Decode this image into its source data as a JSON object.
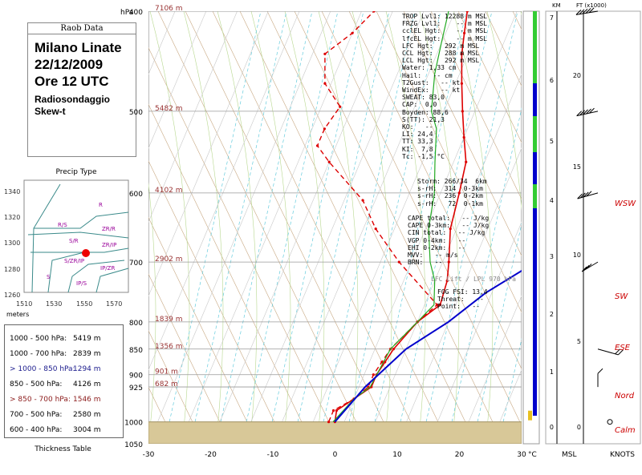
{
  "header": {
    "raob_label": "Raob Data",
    "title": "Milano Linate\n22/12/2009\nOre 12 UTC",
    "subtitle": "Radiosondaggio\nSkew-t"
  },
  "precip": {
    "title": "Precip Type",
    "y_ticks": [
      "1340",
      "1320",
      "1300",
      "1280",
      "1260"
    ],
    "x_ticks": [
      "1510",
      "1530",
      "1550",
      "1570"
    ],
    "axis_label": "meters",
    "regions": [
      "R",
      "R/S",
      "S/R",
      "ZR/R",
      "ZR/IP",
      "S/ZR/IP",
      "IP/ZR",
      "S",
      "IP/S"
    ]
  },
  "thickness": {
    "title": "Thickness Table",
    "rows": [
      {
        "label": "1000 - 500 hPa:",
        "value": "5419 m",
        "color": "#000000"
      },
      {
        "label": "1000 - 700 hPa:",
        "value": "2839 m",
        "color": "#000000"
      },
      {
        "label": "> 1000 - 850 hPa:",
        "value": "1294 m",
        "color": "#1a1a8c"
      },
      {
        "label": "850 - 500 hPa:",
        "value": "4126 m",
        "color": "#000000"
      },
      {
        "label": "> 850 - 700 hPa:",
        "value": "1546 m",
        "color": "#8b1a1a"
      },
      {
        "label": "700 - 500 hPa:",
        "value": "2580 m",
        "color": "#000000"
      },
      {
        "label": "600 - 400 hPa:",
        "value": "3004 m",
        "color": "#000000"
      }
    ]
  },
  "indices": {
    "block1": [
      "TROP Lvl1: 12288 m MSL",
      "FRZG Lvl1:    -- m MSL",
      "cclEL Hgt:    -- m MSL",
      "lfcEL Hgt:    -- m MSL",
      "LFC Hgt:   292 m MSL",
      "CCL Hgt:   288 m MSL",
      "LCL Hgt:   292 m MSL",
      "Water: 1,33 cm",
      "Hail:   -- cm",
      "T2Gust:   -- kt",
      "WindEx:   -- kt",
      "SWEAT: 83,0",
      "CAP:  0,0",
      "Boyden: 88,6",
      "S(TT): 21,3",
      "KO:   --",
      "LI: 24,4",
      "TT: 33,3",
      "KI:  7,8",
      "Tc: -1,5 °C"
    ],
    "block2": [
      "Storm: 266/34  6km",
      "s-rH:  314  0-3km",
      "s-rH:  236  0-2km",
      "s-rH:   72  0-1km"
    ],
    "block3": [
      "CAPE total:   -- J/kg",
      "CAPE 0-3km:   -- J/kg",
      "CIN total:   -- J/kg",
      "VGP 0-4km:   --",
      "EHI 0-2km:   --",
      "MVV:   -- m/s",
      "BRN:   --"
    ],
    "lfc_label": "LFC Lift / LPL 970 hPa",
    "block4": [
      "FOG FSI: 13,4",
      "Threat:   --",
      "Point:   --"
    ]
  },
  "axes": {
    "hpa_label": "hPa",
    "celsius_label": "°C",
    "msl_label": "MSL",
    "knots_label": "KNOTS",
    "km_label": "KM",
    "ft_label": "FT (x1000)",
    "pressure_ticks": [
      "400",
      "500",
      "600",
      "700",
      "800",
      "850",
      "900",
      "925",
      "1000",
      "1050"
    ],
    "temp_ticks": [
      "-30",
      "-20",
      "-10",
      "0",
      "10",
      "20",
      "30"
    ],
    "height_labels": [
      "7106 m",
      "5482 m",
      "4102 m",
      "2902 m",
      "1839 m",
      "1356 m",
      "901 m",
      "682 m"
    ],
    "km_ticks": [
      "7",
      "6",
      "5",
      "4",
      "3",
      "2",
      "1",
      "0"
    ],
    "ft_ticks": [
      "20",
      "15",
      "10",
      "5",
      "0"
    ]
  },
  "wind_labels": [
    "WSW",
    "SW",
    "ESE",
    "Nord",
    "Calm"
  ],
  "colors": {
    "temperature": "#dd0000",
    "dewpoint": "#dd0000",
    "wetbulb": "#22aa22",
    "parcel": "#0000cc",
    "ground": "#d8c898",
    "wind_label": "#cc0000",
    "height_label": "#993333"
  },
  "chart_data": {
    "type": "line",
    "title": "",
    "xlabel": "°C",
    "ylabel": "hPa",
    "xlim": [
      -30,
      30
    ],
    "ylim": [
      1050,
      400
    ],
    "y_scale": "log-pressure",
    "skew": "skew-t",
    "series": [
      {
        "points": [
          [
            -1.5,
            1000
          ],
          [
            -2,
            975
          ],
          [
            0,
            950
          ],
          [
            2,
            925
          ],
          [
            2,
            900
          ],
          [
            2.5,
            875
          ],
          [
            3,
            850
          ],
          [
            5,
            800
          ],
          [
            7.5,
            770
          ],
          [
            7,
            730
          ],
          [
            6,
            700
          ],
          [
            4,
            650
          ],
          [
            3,
            600
          ],
          [
            2,
            560
          ],
          [
            0,
            530
          ],
          [
            -2,
            500
          ],
          [
            -4,
            470
          ],
          [
            -6,
            440
          ],
          [
            -7,
            420
          ],
          [
            -8,
            400
          ]
        ]
      },
      {
        "points": [
          [
            -2.5,
            1000
          ],
          [
            -2.5,
            975
          ],
          [
            0,
            950
          ],
          [
            1.5,
            925
          ],
          [
            1.5,
            900
          ],
          [
            2,
            875
          ],
          [
            2.5,
            850
          ],
          [
            5,
            800
          ],
          [
            7,
            770
          ],
          [
            -2,
            700
          ],
          [
            -8,
            650
          ],
          [
            -12,
            610
          ],
          [
            -20,
            560
          ],
          [
            -23,
            540
          ],
          [
            -23,
            520
          ],
          [
            -22,
            495
          ],
          [
            -26,
            470
          ],
          [
            -28,
            440
          ],
          [
            -25,
            420
          ],
          [
            -23,
            400
          ]
        ]
      },
      {
        "points": [
          [
            -1.8,
            1000
          ],
          [
            0,
            950
          ],
          [
            1.8,
            925
          ],
          [
            2.5,
            850
          ],
          [
            5,
            800
          ],
          [
            6.5,
            770
          ],
          [
            5,
            730
          ],
          [
            3,
            700
          ],
          [
            0.5,
            650
          ],
          [
            -1,
            600
          ],
          [
            -3,
            560
          ],
          [
            -5,
            520
          ],
          [
            -7,
            500
          ],
          [
            -9,
            460
          ],
          [
            -10,
            430
          ],
          [
            -11,
            400
          ]
        ]
      },
      {
        "points": [
          [
            -1.5,
            1000
          ],
          [
            1,
            925
          ],
          [
            5,
            850
          ],
          [
            10,
            800
          ],
          [
            14,
            750
          ],
          [
            20,
            700
          ]
        ]
      }
    ],
    "wind_barbs": [
      {
        "pressure_hpa": 1000,
        "direction_deg": 0,
        "speed_kt": 0
      },
      {
        "pressure_hpa": 925,
        "direction_deg": 360,
        "speed_kt": 10
      },
      {
        "pressure_hpa": 850,
        "direction_deg": 115,
        "speed_kt": 15
      },
      {
        "pressure_hpa": 700,
        "direction_deg": 225,
        "speed_kt": 30
      },
      {
        "pressure_hpa": 600,
        "direction_deg": 245,
        "speed_kt": 40
      },
      {
        "pressure_hpa": 500,
        "direction_deg": 250,
        "speed_kt": 55
      },
      {
        "pressure_hpa": 400,
        "direction_deg": 255,
        "speed_kt": 65
      }
    ]
  }
}
